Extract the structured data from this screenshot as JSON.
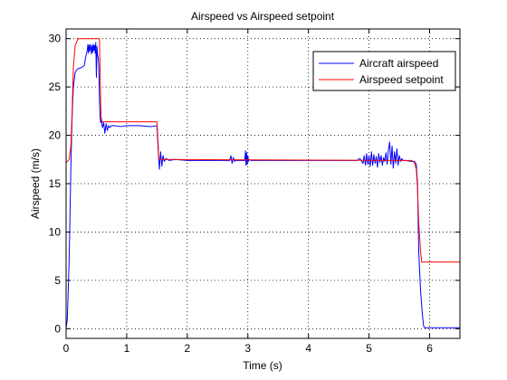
{
  "chart_data": {
    "type": "line",
    "title": "Airspeed vs Airspeed setpoint",
    "xlabel": "Time (s)",
    "ylabel": "Airspeed (m/s)",
    "xlim": [
      0,
      6.5
    ],
    "ylim": [
      -1,
      31
    ],
    "x_ticks": [
      0,
      1,
      2,
      3,
      4,
      5,
      6
    ],
    "y_ticks": [
      0,
      5,
      10,
      15,
      20,
      25,
      30
    ],
    "x_tick_labels": [
      "0",
      "1",
      "2",
      "3",
      "4",
      "5",
      "6"
    ],
    "y_tick_labels": [
      "0",
      "5",
      "10",
      "15",
      "20",
      "25",
      "30"
    ],
    "grid": true,
    "legend_position": "top-right",
    "series": [
      {
        "name": "Aircraft airspeed",
        "color": "#0000ff",
        "x": [
          0,
          0.02,
          0.05,
          0.08,
          0.1,
          0.12,
          0.15,
          0.18,
          0.2,
          0.25,
          0.3,
          0.32,
          0.35,
          0.36,
          0.37,
          0.38,
          0.39,
          0.4,
          0.41,
          0.42,
          0.43,
          0.44,
          0.45,
          0.46,
          0.47,
          0.48,
          0.49,
          0.5,
          0.51,
          0.52,
          0.53,
          0.54,
          0.55,
          0.56,
          0.57,
          0.58,
          0.6,
          0.62,
          0.64,
          0.66,
          0.68,
          0.7,
          0.72,
          0.75,
          0.8,
          0.9,
          1.0,
          1.2,
          1.4,
          1.5,
          1.52,
          1.54,
          1.56,
          1.58,
          1.6,
          1.62,
          1.65,
          1.7,
          1.8,
          2.0,
          2.5,
          2.7,
          2.72,
          2.74,
          2.76,
          2.78,
          2.8,
          2.9,
          2.95,
          2.96,
          2.97,
          2.98,
          2.99,
          3.0,
          3.01,
          3.02,
          3.05,
          3.5,
          4.0,
          4.5,
          4.8,
          4.85,
          4.9,
          4.92,
          4.94,
          4.96,
          4.98,
          5.0,
          5.02,
          5.04,
          5.06,
          5.08,
          5.1,
          5.12,
          5.14,
          5.16,
          5.18,
          5.2,
          5.22,
          5.24,
          5.26,
          5.28,
          5.3,
          5.32,
          5.34,
          5.36,
          5.38,
          5.4,
          5.42,
          5.44,
          5.46,
          5.48,
          5.5,
          5.52,
          5.54,
          5.56,
          5.6,
          5.7,
          5.75,
          5.78,
          5.8,
          5.82,
          5.85,
          5.88,
          5.9,
          5.92,
          6.0,
          6.5
        ],
        "y": [
          0,
          1,
          7,
          17,
          22,
          25,
          26.5,
          26.8,
          26.9,
          27.0,
          27.2,
          28.0,
          28.8,
          29.4,
          28.5,
          29.3,
          28.7,
          29.4,
          29.0,
          28.4,
          29.3,
          28.6,
          29.4,
          28.8,
          29.3,
          28.5,
          29.6,
          26.0,
          29.2,
          28.3,
          28.0,
          27.0,
          24.0,
          22.0,
          21.3,
          21.8,
          20.8,
          21.3,
          20.2,
          21.2,
          20.5,
          21.0,
          20.8,
          21.0,
          21.0,
          20.9,
          21.0,
          21.0,
          20.9,
          21.0,
          18.5,
          16.5,
          18.3,
          16.8,
          17.9,
          17.3,
          17.6,
          17.4,
          17.5,
          17.4,
          17.4,
          17.4,
          17.9,
          17.1,
          17.7,
          17.3,
          17.4,
          17.4,
          17.4,
          18.4,
          16.9,
          18.2,
          17.0,
          17.9,
          17.3,
          17.5,
          17.4,
          17.4,
          17.4,
          17.4,
          17.4,
          17.6,
          17.1,
          17.9,
          16.9,
          18.1,
          17.0,
          17.9,
          16.8,
          18.3,
          16.9,
          18.0,
          17.1,
          17.8,
          16.7,
          18.1,
          17.2,
          17.9,
          16.9,
          17.7,
          17.3,
          18.2,
          17.0,
          18.5,
          19.3,
          17.0,
          18.9,
          16.6,
          18.3,
          17.1,
          18.6,
          16.9,
          17.9,
          17.3,
          17.6,
          17.4,
          17.4,
          17.3,
          17.3,
          17.0,
          15.0,
          8.0,
          4.0,
          1.5,
          0.3,
          0.1,
          0.1,
          0.1
        ]
      },
      {
        "name": "Airspeed setpoint",
        "color": "#ff0000",
        "x": [
          0,
          0.02,
          0.05,
          0.08,
          0.1,
          0.12,
          0.15,
          0.2,
          0.55,
          0.56,
          0.57,
          0.58,
          0.6,
          1.5,
          1.52,
          1.53,
          1.55,
          1.6,
          5.7,
          5.75,
          5.78,
          5.8,
          5.82,
          5.85,
          5.87,
          6.5
        ],
        "y": [
          17.2,
          17.3,
          17.5,
          19.0,
          22.5,
          27.0,
          29.3,
          30.0,
          30.0,
          27.0,
          23.5,
          21.6,
          21.4,
          21.4,
          19.0,
          17.6,
          17.5,
          17.5,
          17.4,
          17.2,
          16.5,
          14.5,
          11.0,
          8.0,
          6.9,
          6.9
        ]
      }
    ]
  }
}
